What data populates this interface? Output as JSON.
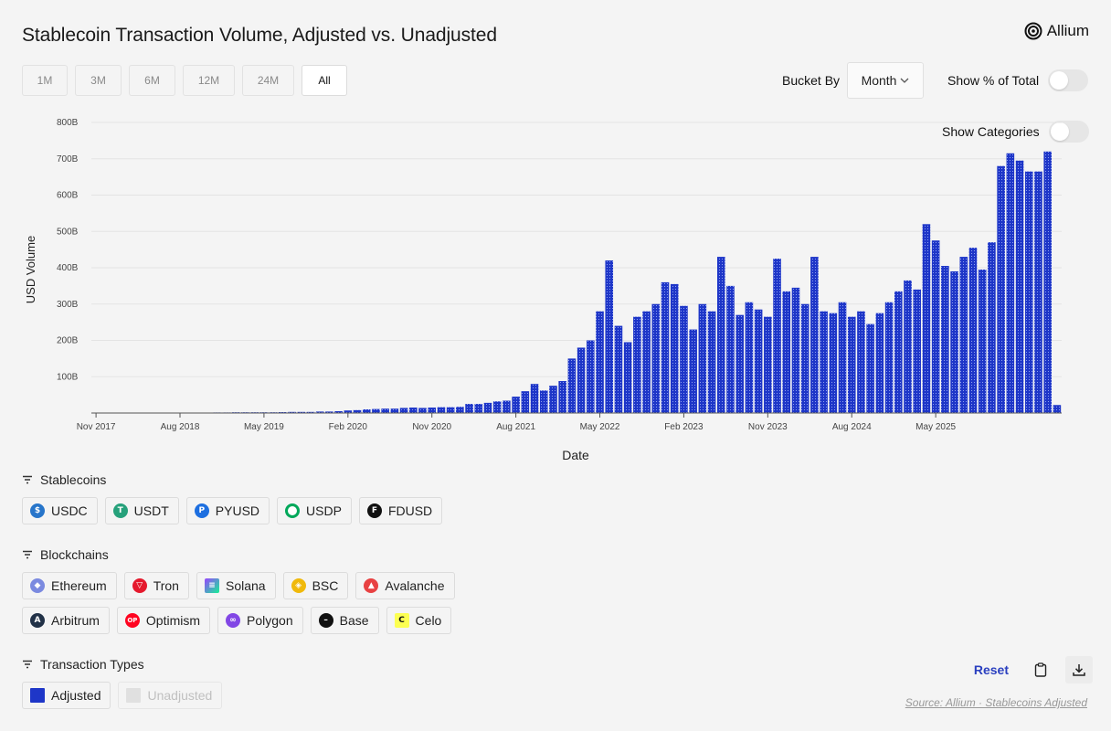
{
  "title": "Stablecoin Transaction Volume, Adjusted vs. Unadjusted",
  "logo_text": "Allium",
  "ranges": [
    {
      "label": "1M",
      "active": false
    },
    {
      "label": "3M",
      "active": false
    },
    {
      "label": "6M",
      "active": false
    },
    {
      "label": "12M",
      "active": false
    },
    {
      "label": "24M",
      "active": false
    },
    {
      "label": "All",
      "active": true
    }
  ],
  "bucket": {
    "label": "Bucket By",
    "value": "Month"
  },
  "toggles": {
    "pct_total": "Show % of Total",
    "categories": "Show Categories"
  },
  "chart_data": {
    "type": "bar",
    "ylabel": "USD Volume",
    "xlabel": "Date",
    "ylim": [
      0,
      800
    ],
    "y_unit": "B",
    "yticks": [
      "100B",
      "200B",
      "300B",
      "400B",
      "500B",
      "600B",
      "700B",
      "800B"
    ],
    "xticks": [
      "Nov 2017",
      "Aug 2018",
      "May 2019",
      "Feb 2020",
      "Nov 2020",
      "Aug 2021",
      "May 2022",
      "Feb 2023",
      "Nov 2023",
      "Aug 2024",
      "May 2025"
    ],
    "bar_color": "#1e36c8",
    "series": [
      {
        "name": "Adjusted",
        "start": "Nov 2017",
        "values": [
          0.5,
          0.5,
          0.5,
          0.5,
          0.5,
          0.5,
          0.5,
          0.5,
          0.5,
          1,
          1,
          1,
          1,
          1.5,
          1.5,
          2,
          2,
          2,
          2,
          2,
          2.5,
          3,
          3,
          3,
          4,
          4,
          5,
          7,
          8,
          10,
          11,
          12,
          12,
          14,
          15,
          14,
          15,
          16,
          16,
          17,
          25,
          25,
          28,
          32,
          34,
          45,
          60,
          80,
          62,
          75,
          88,
          150,
          180,
          200,
          280,
          420,
          240,
          195,
          265,
          280,
          300,
          360,
          355,
          295,
          230,
          300,
          280,
          430,
          350,
          270,
          305,
          285,
          265,
          425,
          335,
          345,
          300,
          430,
          280,
          275,
          305,
          265,
          280,
          245,
          275,
          305,
          335,
          365,
          340,
          520,
          475,
          405,
          390,
          430,
          455,
          395,
          470,
          680,
          715,
          695,
          665,
          665,
          720,
          22
        ]
      }
    ]
  },
  "stablecoins": {
    "label": "Stablecoins",
    "items": [
      {
        "label": "USDC",
        "icon": "usdc-icon",
        "color": "#2775ca"
      },
      {
        "label": "USDT",
        "icon": "usdt-icon",
        "color": "#26a17b"
      },
      {
        "label": "PYUSD",
        "icon": "pyusd-icon",
        "color": "#1d6fe0"
      },
      {
        "label": "USDP",
        "icon": "usdp-icon",
        "color": "#00a85a"
      },
      {
        "label": "FDUSD",
        "icon": "fdusd-icon",
        "color": "#111111"
      }
    ]
  },
  "blockchains": {
    "label": "Blockchains",
    "row1": [
      {
        "label": "Ethereum",
        "icon": "ethereum-icon",
        "color": "#7b8ae0"
      },
      {
        "label": "Tron",
        "icon": "tron-icon",
        "color": "#e5192d"
      },
      {
        "label": "Solana",
        "icon": "solana-icon",
        "color": "#9b56e0"
      },
      {
        "label": "BSC",
        "icon": "bsc-icon",
        "color": "#f0b90b"
      },
      {
        "label": "Avalanche",
        "icon": "avalanche-icon",
        "color": "#e84142"
      }
    ],
    "row2": [
      {
        "label": "Arbitrum",
        "icon": "arbitrum-icon",
        "color": "#213147"
      },
      {
        "label": "Optimism",
        "icon": "optimism-icon",
        "color": "#ff0420"
      },
      {
        "label": "Polygon",
        "icon": "polygon-icon",
        "color": "#8247e5"
      },
      {
        "label": "Base",
        "icon": "base-icon",
        "color": "#111111"
      },
      {
        "label": "Celo",
        "icon": "celo-icon",
        "color": "#fcff52"
      }
    ]
  },
  "tx_types": {
    "label": "Transaction Types",
    "items": [
      {
        "label": "Adjusted",
        "color": "#1e36c8",
        "enabled": true
      },
      {
        "label": "Unadjusted",
        "color": "#e0e0e0",
        "enabled": false
      }
    ]
  },
  "actions": {
    "reset": "Reset"
  },
  "source": "Source: Allium · Stablecoins Adjusted"
}
